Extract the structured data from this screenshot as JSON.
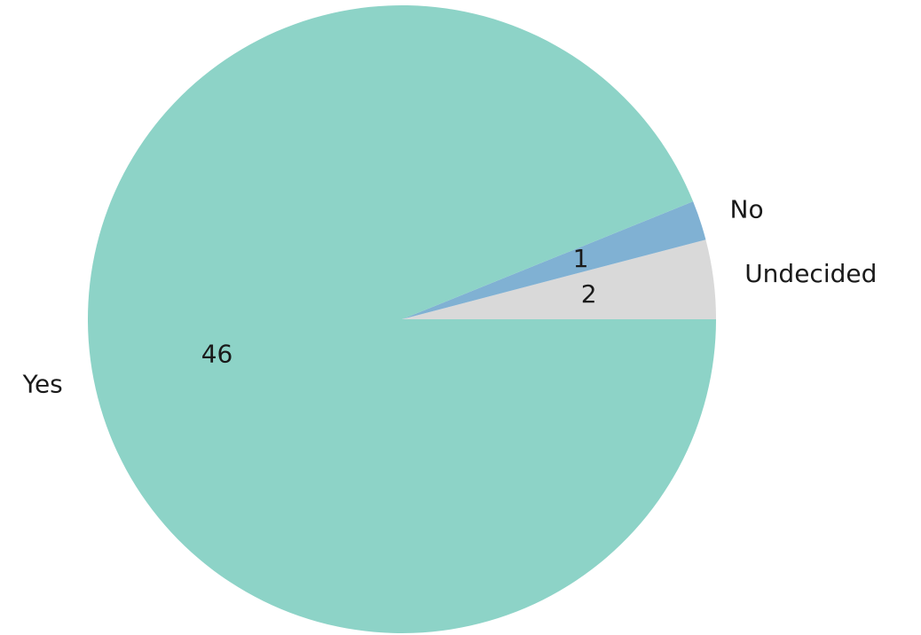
{
  "chart_data": {
    "type": "pie",
    "title": "",
    "start_angle_deg": 0,
    "direction": "counterclockwise",
    "slices": [
      {
        "label": "Undecided",
        "value": 2,
        "color": "#d9d9d9"
      },
      {
        "label": "No",
        "value": 1,
        "color": "#80b1d3"
      },
      {
        "label": "Yes",
        "value": 46,
        "color": "#8dd3c7"
      }
    ]
  }
}
